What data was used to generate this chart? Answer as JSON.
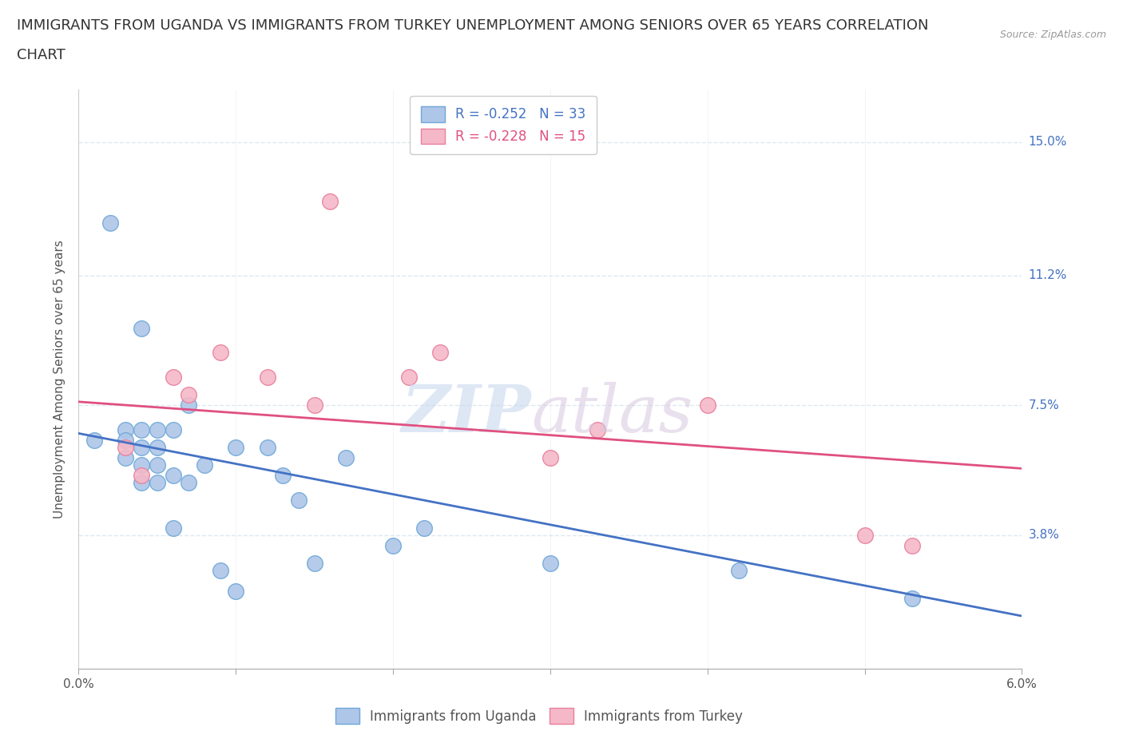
{
  "title_line1": "IMMIGRANTS FROM UGANDA VS IMMIGRANTS FROM TURKEY UNEMPLOYMENT AMONG SENIORS OVER 65 YEARS CORRELATION",
  "title_line2": "CHART",
  "source": "Source: ZipAtlas.com",
  "ylabel": "Unemployment Among Seniors over 65 years",
  "xlim": [
    0.0,
    0.06
  ],
  "ylim": [
    0.0,
    0.165
  ],
  "yticks": [
    0.038,
    0.075,
    0.112,
    0.15
  ],
  "ytick_labels": [
    "3.8%",
    "7.5%",
    "11.2%",
    "15.0%"
  ],
  "xtick_positions": [
    0.0,
    0.01,
    0.02,
    0.03,
    0.04,
    0.05,
    0.06
  ],
  "xtick_labels": [
    "0.0%",
    "",
    "",
    "",
    "",
    "",
    "6.0%"
  ],
  "uganda_color": "#aec6e8",
  "turkey_color": "#f5b8c8",
  "uganda_edge": "#6fa8d8",
  "turkey_edge": "#e8809c",
  "uganda_line_color": "#4472c4",
  "turkey_line_color": "#e05080",
  "legend_uganda_label": "R = -0.252   N = 33",
  "legend_turkey_label": "R = -0.228   N = 15",
  "legend_label_uganda": "Immigrants from Uganda",
  "legend_label_turkey": "Immigrants from Turkey",
  "uganda_x": [
    0.001,
    0.002,
    0.003,
    0.003,
    0.003,
    0.004,
    0.004,
    0.004,
    0.004,
    0.004,
    0.005,
    0.005,
    0.005,
    0.005,
    0.006,
    0.006,
    0.006,
    0.007,
    0.007,
    0.008,
    0.009,
    0.01,
    0.01,
    0.012,
    0.013,
    0.014,
    0.015,
    0.017,
    0.02,
    0.022,
    0.03,
    0.042,
    0.053
  ],
  "uganda_y": [
    0.065,
    0.127,
    0.068,
    0.065,
    0.06,
    0.097,
    0.068,
    0.063,
    0.058,
    0.053,
    0.068,
    0.063,
    0.058,
    0.053,
    0.068,
    0.04,
    0.055,
    0.053,
    0.075,
    0.058,
    0.028,
    0.063,
    0.022,
    0.063,
    0.055,
    0.048,
    0.03,
    0.06,
    0.035,
    0.04,
    0.03,
    0.028,
    0.02
  ],
  "turkey_x": [
    0.003,
    0.004,
    0.006,
    0.007,
    0.009,
    0.012,
    0.015,
    0.016,
    0.021,
    0.023,
    0.03,
    0.033,
    0.04,
    0.05,
    0.053
  ],
  "turkey_y": [
    0.063,
    0.055,
    0.083,
    0.078,
    0.09,
    0.083,
    0.075,
    0.133,
    0.083,
    0.09,
    0.06,
    0.068,
    0.075,
    0.038,
    0.035
  ],
  "uganda_trend": [
    0.067,
    0.015
  ],
  "turkey_trend": [
    0.076,
    0.057
  ],
  "background_color": "#ffffff",
  "grid_color": "#dce8f0",
  "title_fontsize": 13,
  "axis_label_fontsize": 11,
  "tick_fontsize": 11,
  "legend_fontsize": 12
}
